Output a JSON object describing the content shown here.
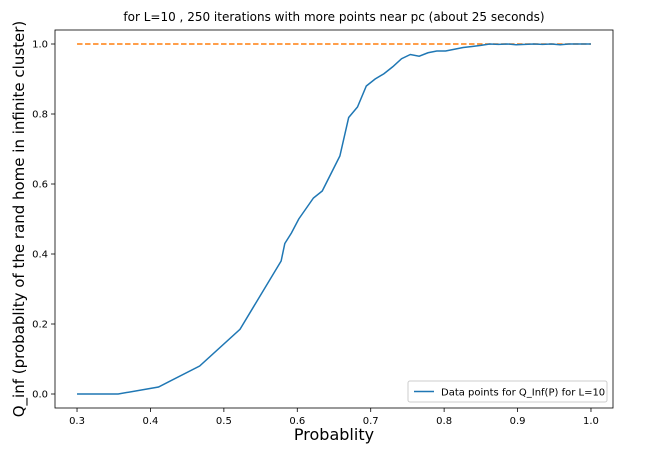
{
  "chart_data": {
    "type": "line",
    "title": "for L=10 , 250 iterations with more points near pc (about 25 seconds)",
    "xlabel": "Probablity",
    "ylabel": "Q_inf (probablity of the rand home in infinite cluster)",
    "xlim": [
      0.27,
      1.03
    ],
    "ylim": [
      -0.04,
      1.04
    ],
    "xticks": [
      "0.3",
      "0.4",
      "0.5",
      "0.6",
      "0.7",
      "0.8",
      "0.9",
      "1.0"
    ],
    "yticks": [
      "0.0",
      "0.2",
      "0.4",
      "0.6",
      "0.8",
      "1.0"
    ],
    "legend_position": "lower-right",
    "colors": {
      "series": "#1f77b4",
      "reference": "#ff7f0e"
    },
    "series": [
      {
        "name": "Data points for Q_Inf(P) for L=10",
        "style": "solid",
        "x": [
          0.3,
          0.356,
          0.411,
          0.467,
          0.522,
          0.578,
          0.583,
          0.592,
          0.602,
          0.612,
          0.622,
          0.634,
          0.646,
          0.658,
          0.67,
          0.682,
          0.694,
          0.706,
          0.718,
          0.73,
          0.742,
          0.754,
          0.766,
          0.778,
          0.79,
          0.802,
          0.814,
          0.826,
          0.838,
          0.85,
          0.862,
          0.874,
          0.886,
          0.898,
          0.91,
          0.922,
          0.934,
          0.946,
          0.958,
          0.97,
          0.982,
          1.0
        ],
        "y": [
          0.0,
          0.0,
          0.02,
          0.08,
          0.185,
          0.38,
          0.43,
          0.46,
          0.5,
          0.53,
          0.56,
          0.58,
          0.63,
          0.68,
          0.79,
          0.82,
          0.88,
          0.9,
          0.915,
          0.935,
          0.958,
          0.97,
          0.965,
          0.975,
          0.98,
          0.98,
          0.985,
          0.99,
          0.993,
          0.996,
          1.0,
          0.999,
          1.0,
          0.998,
          0.999,
          1.0,
          0.999,
          1.0,
          0.998,
          1.0,
          1.0,
          1.0
        ]
      },
      {
        "name": "",
        "style": "dashed",
        "x": [
          0.3,
          1.0
        ],
        "y": [
          1.0,
          1.0
        ]
      }
    ]
  }
}
